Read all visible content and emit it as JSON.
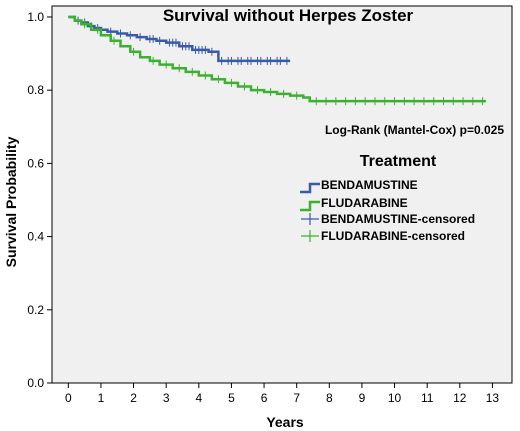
{
  "chart_data": {
    "type": "line",
    "title": "Survival without Herpes Zoster",
    "xlabel": "Years",
    "ylabel": "Survival Probability",
    "xlim": [
      -0.5,
      13.6
    ],
    "ylim": [
      0,
      1.03
    ],
    "xticks": [
      0,
      1,
      2,
      3,
      4,
      5,
      6,
      7,
      8,
      9,
      10,
      11,
      12,
      13
    ],
    "xtick_labels": [
      "0",
      "1",
      "2",
      "3",
      "4",
      "5",
      "6",
      "7",
      "8",
      "9",
      "10",
      "11",
      "12",
      "13"
    ],
    "yticks": [
      0,
      0.2,
      0.4,
      0.6,
      0.8,
      1.0
    ],
    "ytick_labels": [
      "0.0",
      "0.2",
      "0.4",
      "0.6",
      "0.8",
      "1.0"
    ],
    "grid": false,
    "annotation": "Log-Rank (Mantel-Cox) p=0.025",
    "legend": {
      "title": "Treatment",
      "placement": "right",
      "entries": [
        "BENDAMUSTINE",
        "FLUDARABINE",
        "BENDAMUSTINE-censored",
        "FLUDARABINE-censored"
      ]
    },
    "colors": {
      "bendamustine": "#3a5ba8",
      "fludarabine": "#3cb030",
      "plot_bg": "#f0f0f0"
    },
    "series": [
      {
        "name": "BENDAMUSTINE",
        "step_x": [
          0,
          0.2,
          0.4,
          0.6,
          0.8,
          1.0,
          1.2,
          1.5,
          1.8,
          2.1,
          2.4,
          2.7,
          3.0,
          3.4,
          3.8,
          4.3,
          4.6,
          6.8
        ],
        "step_y": [
          1.0,
          0.99,
          0.985,
          0.975,
          0.97,
          0.965,
          0.96,
          0.955,
          0.95,
          0.945,
          0.94,
          0.935,
          0.93,
          0.92,
          0.91,
          0.905,
          0.88,
          0.88
        ],
        "censored_x": [
          0.3,
          0.5,
          0.7,
          0.9,
          1.3,
          1.6,
          1.9,
          2.2,
          2.5,
          2.6,
          2.8,
          3.1,
          3.2,
          3.3,
          3.5,
          3.6,
          3.7,
          3.9,
          4.0,
          4.1,
          4.2,
          4.4,
          4.7,
          4.9,
          5.0,
          5.2,
          5.3,
          5.5,
          5.6,
          5.8,
          5.9,
          6.1,
          6.2,
          6.4,
          6.5,
          6.7
        ],
        "censored_y": [
          0.99,
          0.985,
          0.975,
          0.97,
          0.96,
          0.955,
          0.95,
          0.945,
          0.94,
          0.94,
          0.935,
          0.93,
          0.93,
          0.93,
          0.92,
          0.92,
          0.92,
          0.91,
          0.91,
          0.91,
          0.91,
          0.905,
          0.88,
          0.88,
          0.88,
          0.88,
          0.88,
          0.88,
          0.88,
          0.88,
          0.88,
          0.88,
          0.88,
          0.88,
          0.88,
          0.88
        ]
      },
      {
        "name": "FLUDARABINE",
        "step_x": [
          0,
          0.2,
          0.4,
          0.7,
          1.0,
          1.3,
          1.6,
          1.9,
          2.2,
          2.5,
          2.8,
          3.2,
          3.6,
          4.0,
          4.4,
          4.8,
          5.2,
          5.6,
          6.0,
          6.4,
          6.8,
          7.2,
          7.4,
          12.8
        ],
        "step_y": [
          1.0,
          0.99,
          0.98,
          0.965,
          0.95,
          0.935,
          0.92,
          0.905,
          0.89,
          0.88,
          0.87,
          0.86,
          0.85,
          0.84,
          0.83,
          0.82,
          0.81,
          0.8,
          0.795,
          0.79,
          0.785,
          0.78,
          0.77,
          0.77
        ],
        "censored_x": [
          0.5,
          0.9,
          1.4,
          2.0,
          2.6,
          3.0,
          3.4,
          3.8,
          4.2,
          4.6,
          5.0,
          5.4,
          5.8,
          6.2,
          6.6,
          7.0,
          7.6,
          7.9,
          8.2,
          8.5,
          8.8,
          9.1,
          9.4,
          9.7,
          10.0,
          10.3,
          10.6,
          10.9,
          11.2,
          11.5,
          11.8,
          12.1,
          12.4,
          12.7
        ],
        "censored_y": [
          0.98,
          0.965,
          0.935,
          0.905,
          0.88,
          0.87,
          0.86,
          0.85,
          0.84,
          0.83,
          0.82,
          0.81,
          0.8,
          0.795,
          0.79,
          0.785,
          0.77,
          0.77,
          0.77,
          0.77,
          0.77,
          0.77,
          0.77,
          0.77,
          0.77,
          0.77,
          0.77,
          0.77,
          0.77,
          0.77,
          0.77,
          0.77,
          0.77,
          0.77
        ]
      }
    ]
  }
}
